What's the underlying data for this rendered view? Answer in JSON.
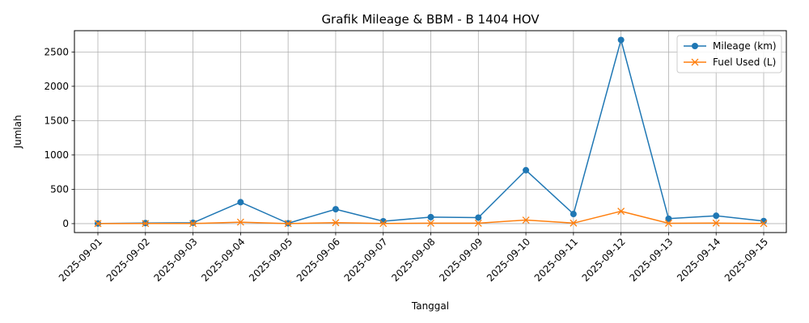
{
  "chart_data": {
    "type": "line",
    "title": "Grafik Mileage & BBM - B 1404 HOV",
    "xlabel": "Tanggal",
    "ylabel": "Jumlah",
    "categories": [
      "2025-09-01",
      "2025-09-02",
      "2025-09-03",
      "2025-09-04",
      "2025-09-05",
      "2025-09-06",
      "2025-09-07",
      "2025-09-08",
      "2025-09-09",
      "2025-09-10",
      "2025-09-11",
      "2025-09-12",
      "2025-09-13",
      "2025-09-14",
      "2025-09-15"
    ],
    "ylim": [
      -130,
      2810
    ],
    "yticks": [
      0,
      500,
      1000,
      1500,
      2000,
      2500
    ],
    "grid": true,
    "legend_position": "top-right",
    "series": [
      {
        "name": "Mileage (km)",
        "color": "#1f77b4",
        "marker": "circle",
        "values": [
          2,
          8,
          12,
          312,
          5,
          210,
          35,
          95,
          88,
          778,
          140,
          2675,
          72,
          115,
          38
        ]
      },
      {
        "name": "Fuel Used (L)",
        "color": "#ff7f0e",
        "marker": "x",
        "values": [
          1,
          2,
          2,
          22,
          1,
          14,
          3,
          6,
          6,
          52,
          8,
          180,
          5,
          8,
          2
        ]
      }
    ]
  }
}
